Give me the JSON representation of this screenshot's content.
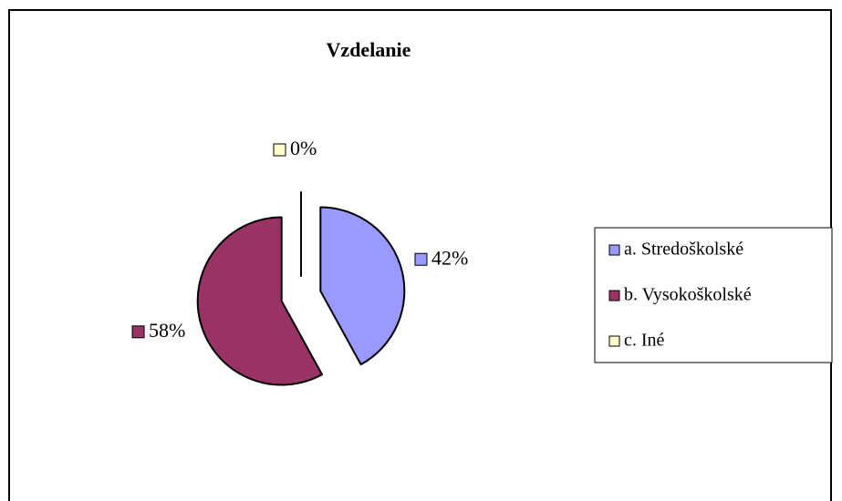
{
  "chart_data": {
    "type": "pie",
    "title": "Vzdelanie",
    "categories": [
      "a. Stredoškolské",
      "b. Vysokoškolské",
      "c. Iné"
    ],
    "values": [
      42,
      58,
      0
    ],
    "value_labels": [
      "42%",
      "58%",
      "0%"
    ],
    "colors": [
      "#9999ff",
      "#993366",
      "#ffffcc"
    ],
    "exploded": true,
    "legend": "right"
  }
}
